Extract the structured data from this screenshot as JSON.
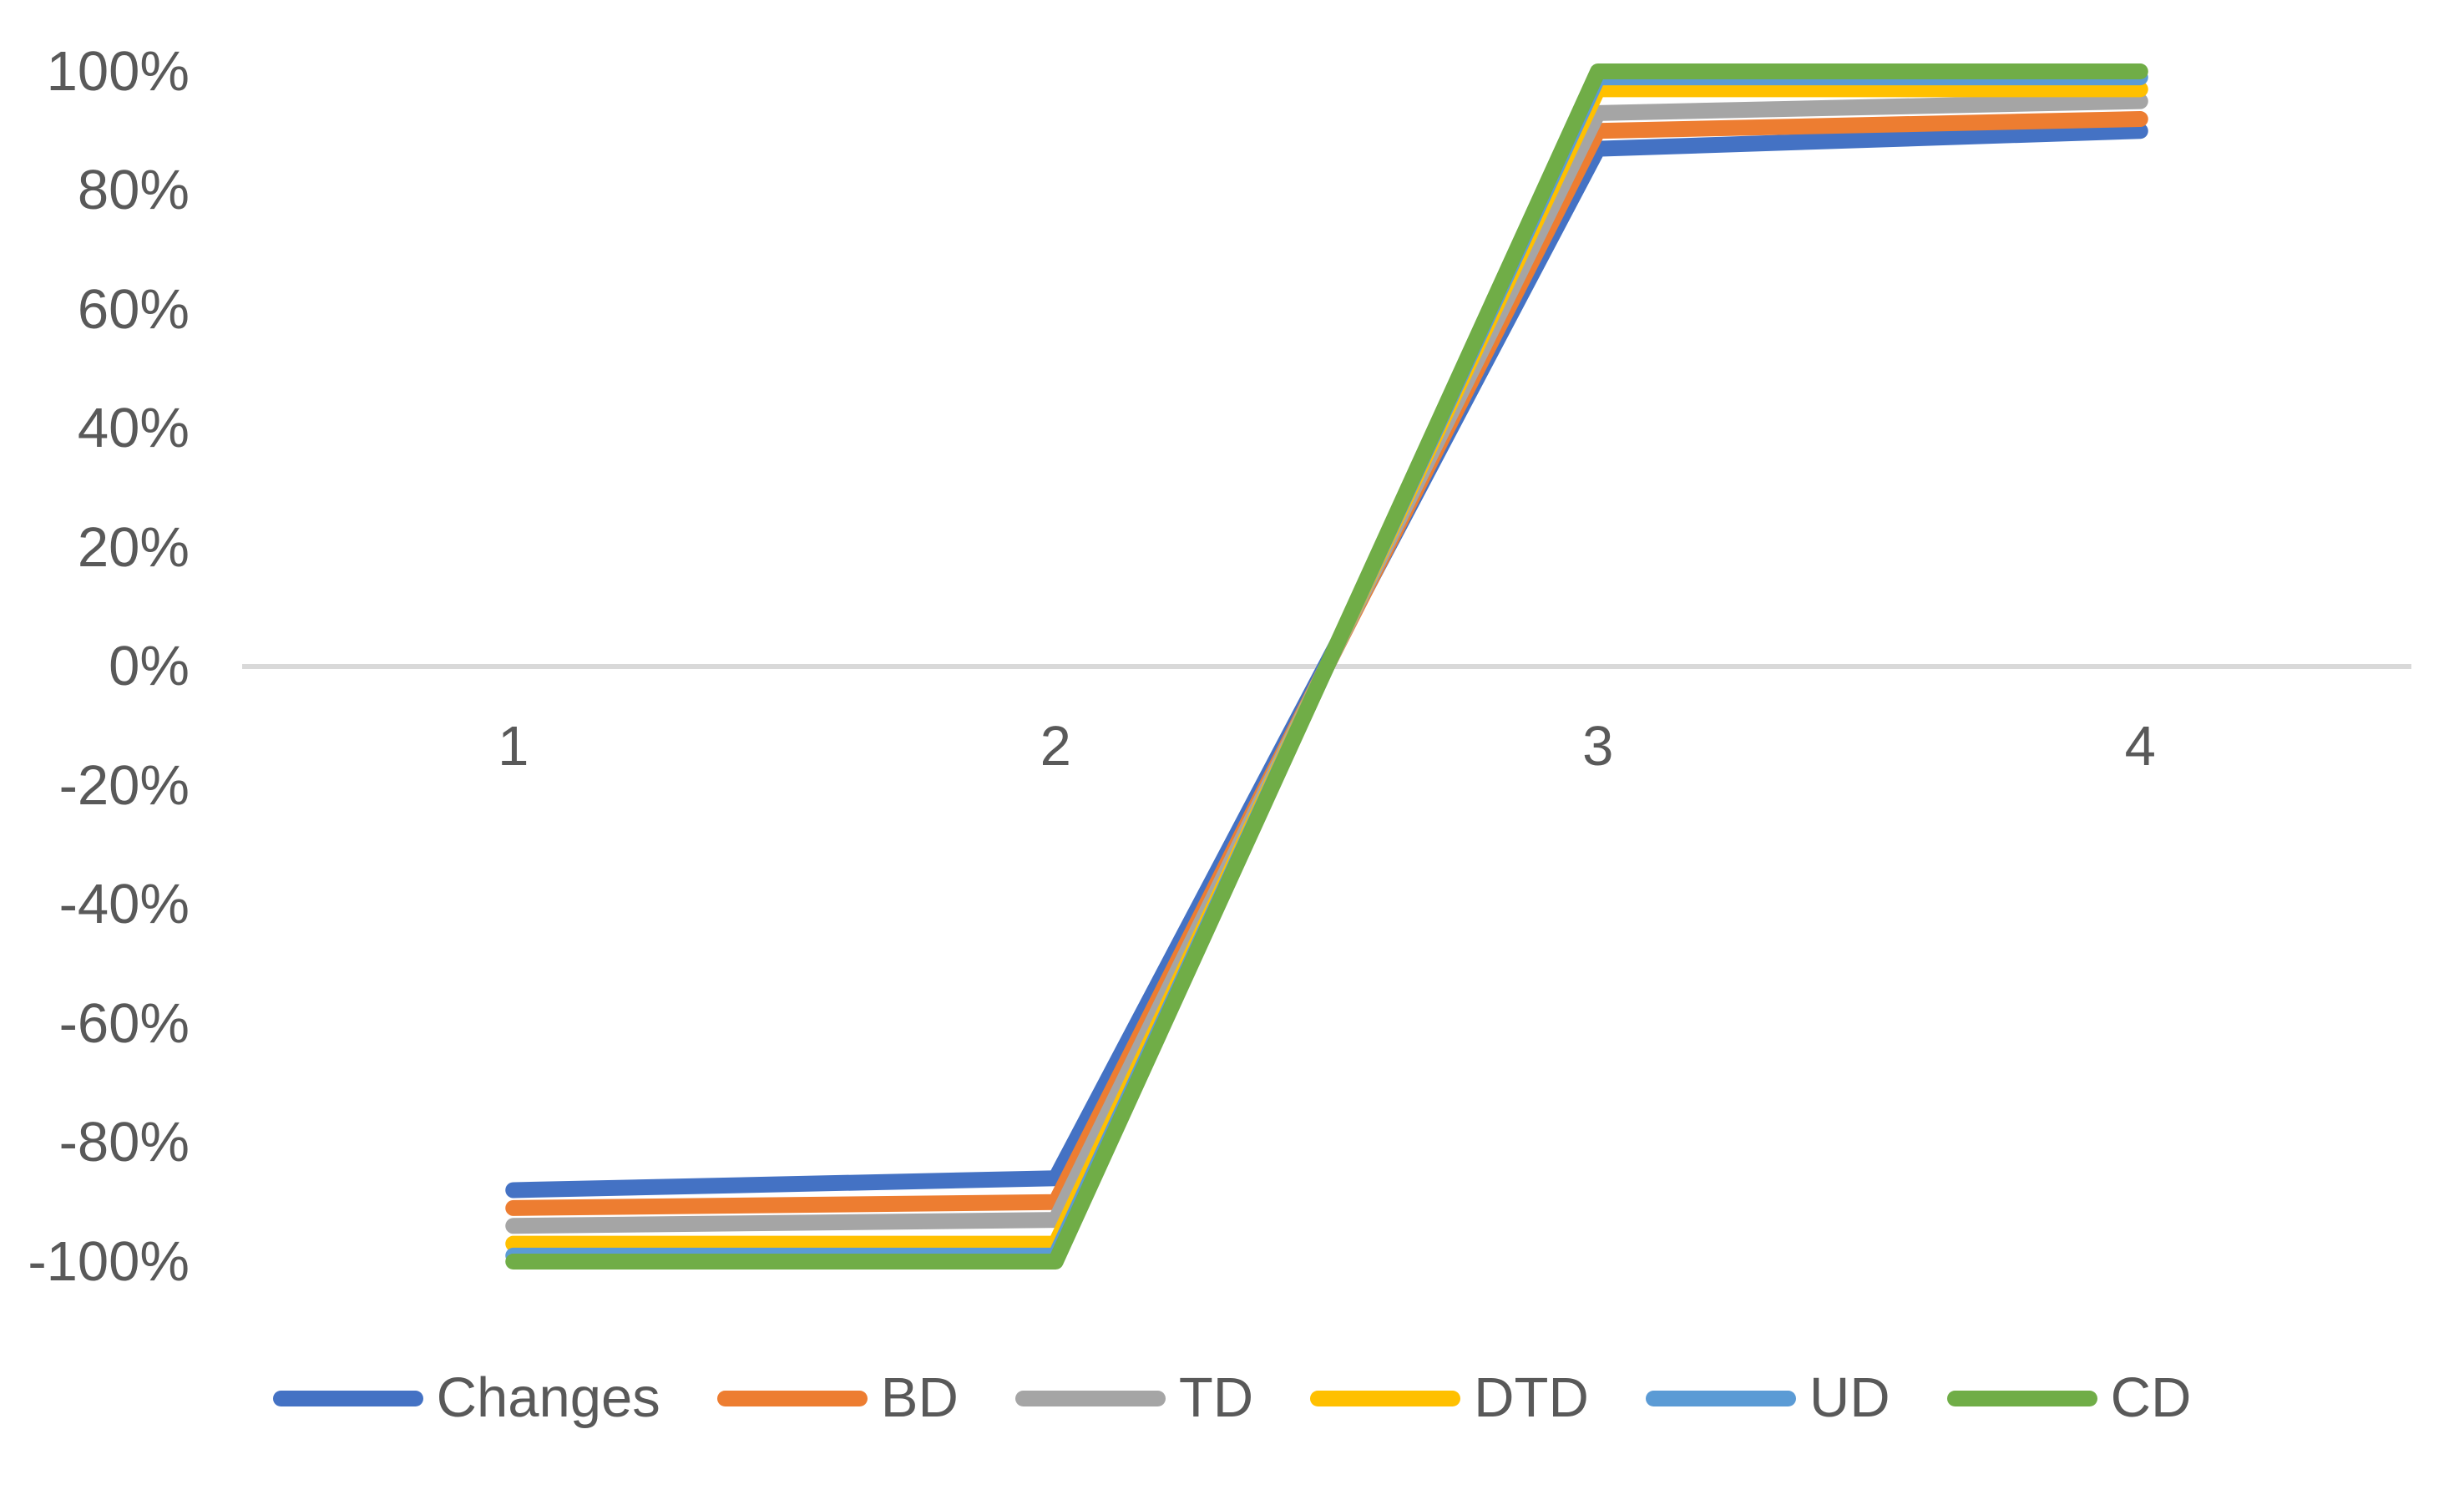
{
  "chart_data": {
    "type": "line",
    "categories": [
      "1",
      "2",
      "3",
      "4"
    ],
    "series": [
      {
        "name": "Changes",
        "color": "#4472C4",
        "values": [
          -88,
          -86,
          87,
          90
        ]
      },
      {
        "name": "BD",
        "color": "#ED7D31",
        "values": [
          -91,
          -90,
          90,
          92
        ]
      },
      {
        "name": "TD",
        "color": "#A5A5A5",
        "values": [
          -94,
          -93,
          93,
          95
        ]
      },
      {
        "name": "DTD",
        "color": "#FFC000",
        "values": [
          -97,
          -97,
          97,
          97
        ]
      },
      {
        "name": "UD",
        "color": "#5B9BD5",
        "values": [
          -99,
          -99,
          99,
          99
        ]
      },
      {
        "name": "CD",
        "color": "#70AD47",
        "values": [
          -100,
          -100,
          100,
          100
        ]
      }
    ],
    "y_ticks": [
      {
        "label": "100%",
        "value": 100
      },
      {
        "label": "80%",
        "value": 80
      },
      {
        "label": "60%",
        "value": 60
      },
      {
        "label": "40%",
        "value": 40
      },
      {
        "label": "20%",
        "value": 20
      },
      {
        "label": "0%",
        "value": 0
      },
      {
        "label": "-20%",
        "value": -20
      },
      {
        "label": "-40%",
        "value": -40
      },
      {
        "label": "-60%",
        "value": -60
      },
      {
        "label": "-80%",
        "value": -80
      },
      {
        "label": "-100%",
        "value": -100
      }
    ],
    "ylim": [
      -100,
      100
    ],
    "title": "",
    "xlabel": "",
    "ylabel": "",
    "legend_position": "bottom",
    "grid": "zero-line-only",
    "axis_text_color": "#595959",
    "zero_line_color": "#D9D9D9",
    "background_color": "#FFFFFF"
  }
}
